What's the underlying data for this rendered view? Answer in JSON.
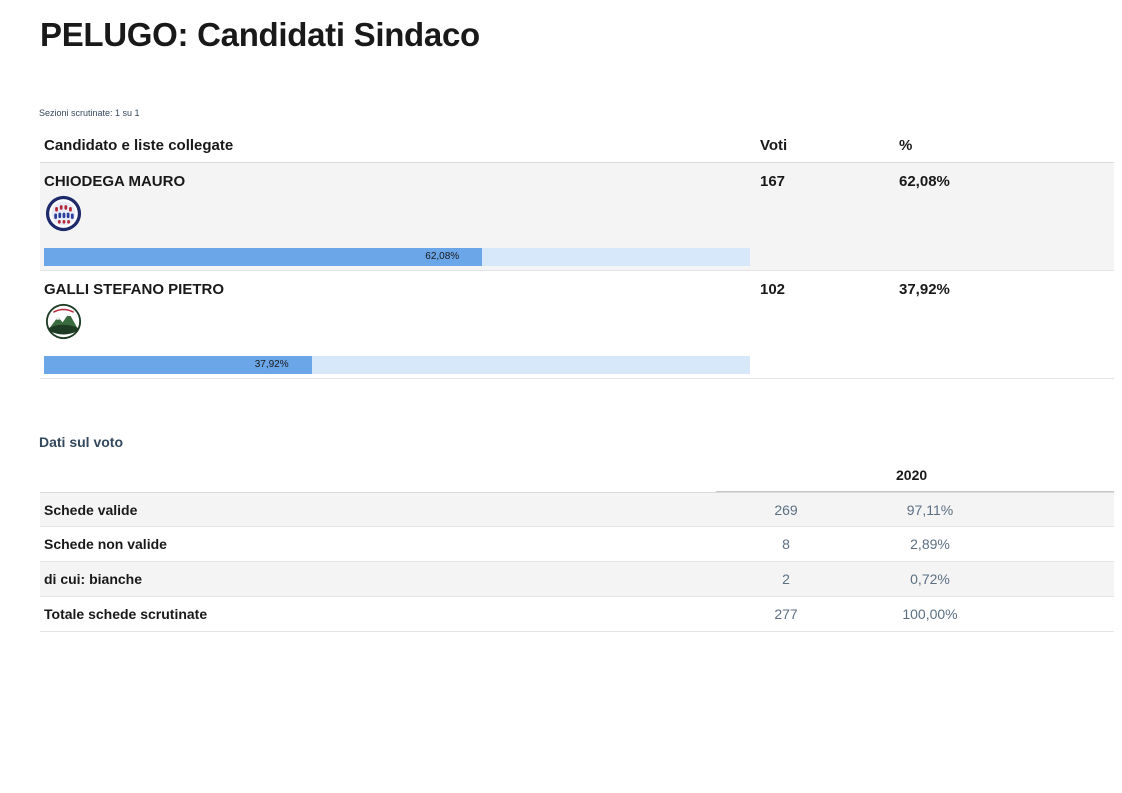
{
  "page": {
    "title": "PELUGO: Candidati Sindaco",
    "sections_note": "Sezioni scrutinate: 1 su 1"
  },
  "candidates_table": {
    "headers": {
      "candidate": "Candidato e liste collegate",
      "votes": "Voti",
      "percent": "%"
    },
    "rows": [
      {
        "name": "CHIODEGA MAURO",
        "votes": "167",
        "percent": "62,08%",
        "share": 0.6208,
        "logo": "list-logo-round-blue-icon"
      },
      {
        "name": "GALLI STEFANO PIETRO",
        "votes": "102",
        "percent": "37,92%",
        "share": 0.3792,
        "logo": "list-logo-mountain-icon"
      }
    ]
  },
  "vote_data": {
    "title": "Dati sul voto",
    "year": "2020",
    "rows": [
      {
        "label": "Schede valide",
        "value": "269",
        "percent": "97,11%"
      },
      {
        "label": "Schede non valide",
        "value": "8",
        "percent": "2,89%"
      },
      {
        "label": "di cui: bianche",
        "value": "2",
        "percent": "0,72%"
      },
      {
        "label": "Totale schede scrutinate",
        "value": "277",
        "percent": "100,00%"
      }
    ]
  },
  "colors": {
    "bar_fill": "#6aa6e8",
    "bar_track": "#d6e8fa",
    "row_shade": "#f4f4f5"
  }
}
